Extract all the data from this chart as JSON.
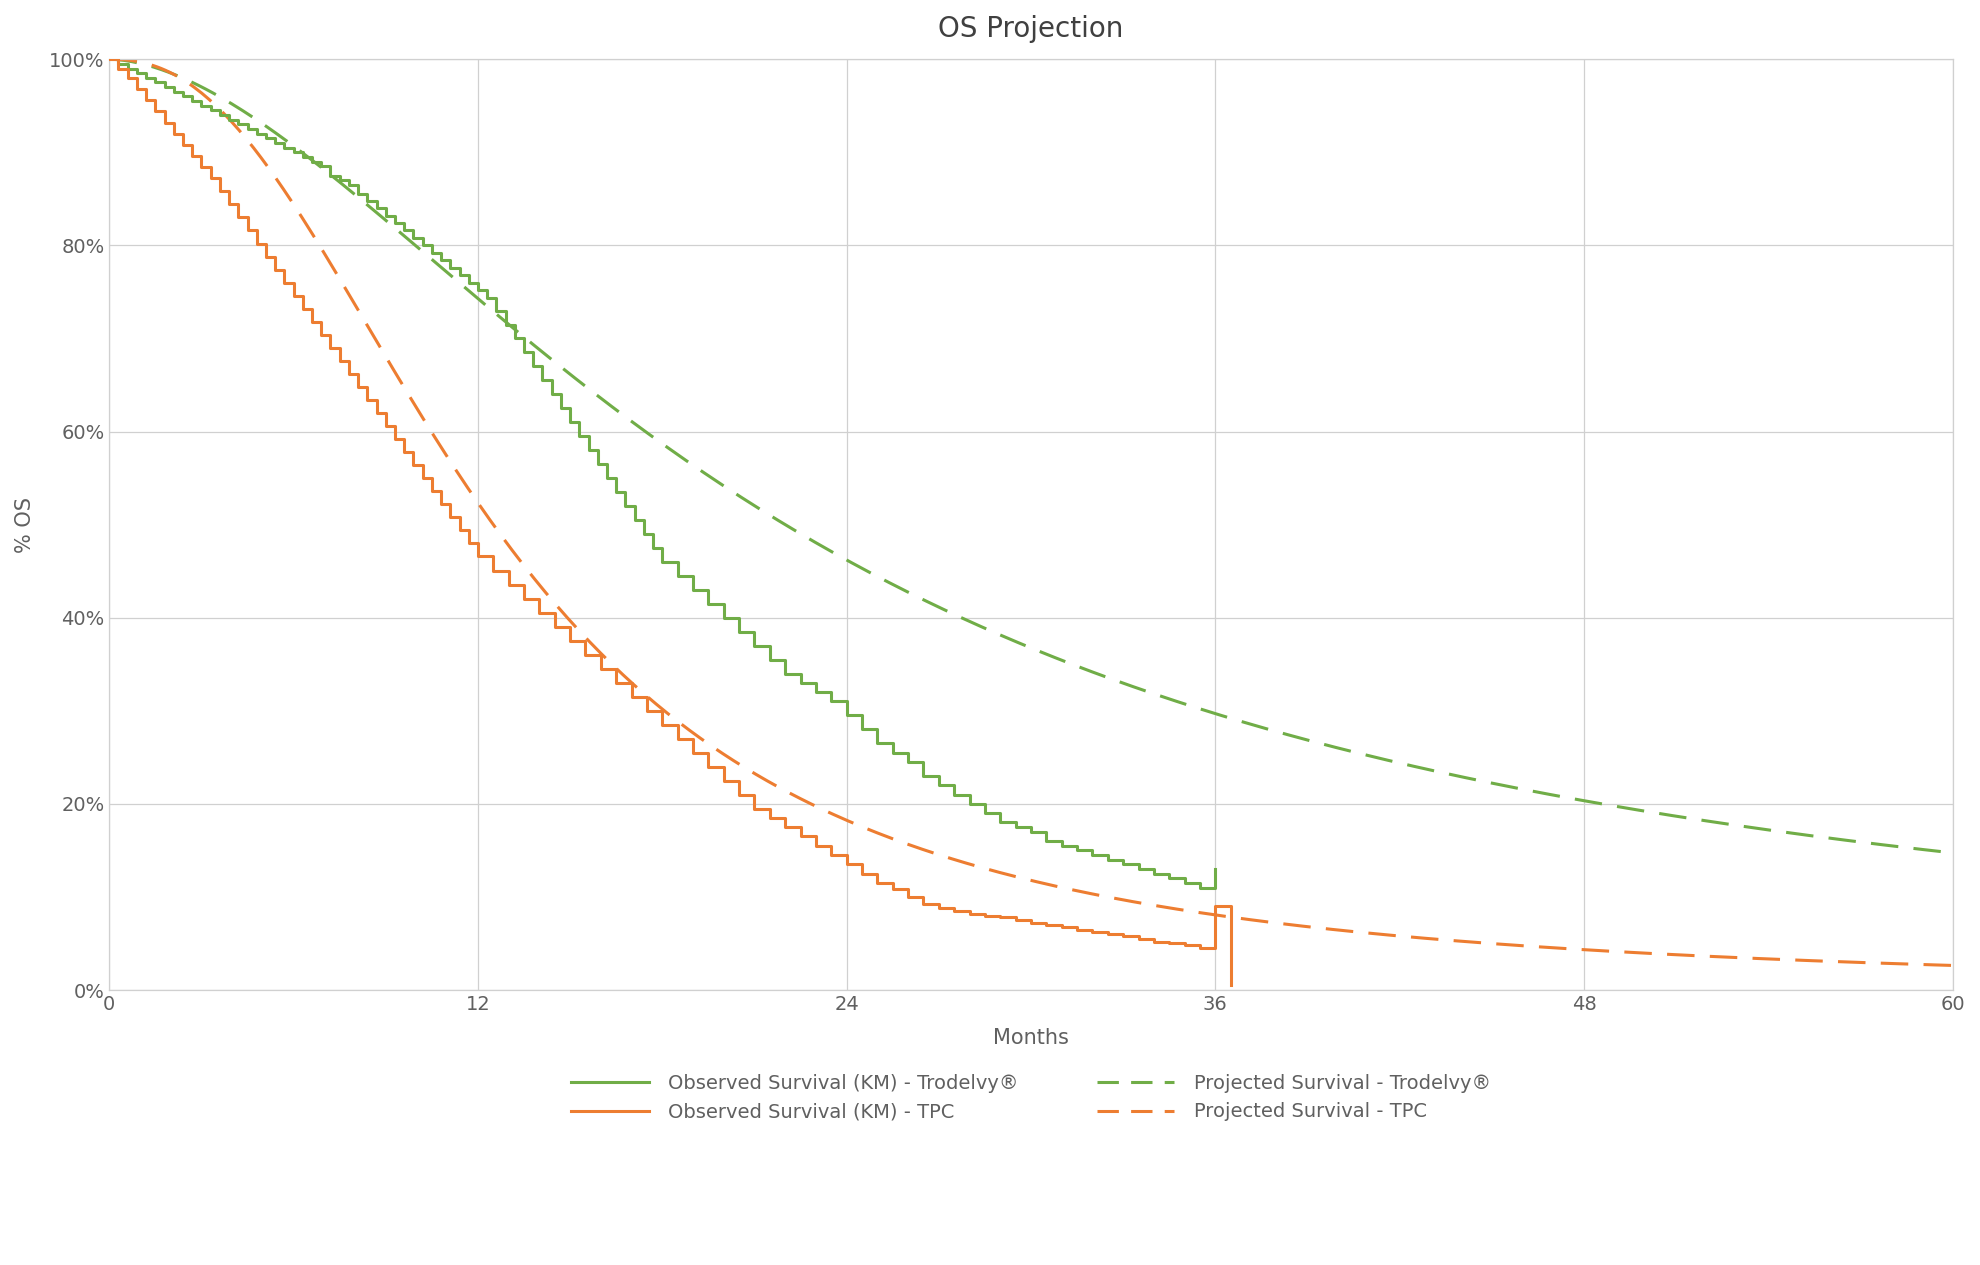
{
  "title": "OS Projection",
  "xlabel": "Months",
  "ylabel": "% OS",
  "xlim": [
    0,
    60
  ],
  "ylim": [
    0,
    1.0
  ],
  "xticks": [
    0,
    12,
    24,
    36,
    48,
    60
  ],
  "yticks": [
    0,
    0.2,
    0.4,
    0.6,
    0.8,
    1.0
  ],
  "ytick_labels": [
    "0%",
    "20%",
    "40%",
    "60%",
    "80%",
    "100%"
  ],
  "green_color": "#70AD47",
  "orange_color": "#ED7D31",
  "background_color": "#FFFFFF",
  "grid_color": "#D0D0D0",
  "legend_entries": [
    {
      "label": "Observed Survival (KM) - Trodelvy®",
      "color": "#70AD47",
      "linestyle": "solid"
    },
    {
      "label": "Observed Survival (KM) - TPC",
      "color": "#ED7D31",
      "linestyle": "solid"
    },
    {
      "label": "Projected Survival - Trodelvy®",
      "color": "#70AD47",
      "linestyle": "dashed"
    },
    {
      "label": "Projected Survival - TPC",
      "color": "#ED7D31",
      "linestyle": "dashed"
    }
  ],
  "title_fontsize": 20,
  "label_fontsize": 15,
  "tick_fontsize": 14,
  "legend_fontsize": 14,
  "linewidth": 2.2,
  "km_trodelvy_x": [
    0,
    0.3,
    0.6,
    0.9,
    1.2,
    1.5,
    1.8,
    2.1,
    2.4,
    2.7,
    3.0,
    3.3,
    3.6,
    3.9,
    4.2,
    4.5,
    4.8,
    5.1,
    5.4,
    5.7,
    6.0,
    6.3,
    6.6,
    6.9,
    7.2,
    7.5,
    7.8,
    8.1,
    8.4,
    8.7,
    9.0,
    9.3,
    9.6,
    9.9,
    10.2,
    10.5,
    10.8,
    11.1,
    11.4,
    11.7,
    12.0,
    12.3,
    12.6,
    12.9,
    13.2,
    13.5,
    13.8,
    14.1,
    14.4,
    14.7,
    15.0,
    15.3,
    15.6,
    15.9,
    16.2,
    16.5,
    16.8,
    17.1,
    17.4,
    17.7,
    18.0,
    18.5,
    19.0,
    19.5,
    20.0,
    20.5,
    21.0,
    21.5,
    22.0,
    22.5,
    23.0,
    23.5,
    24.0,
    24.5,
    25.0,
    25.5,
    26.0,
    26.5,
    27.0,
    27.5,
    28.0,
    28.5,
    29.0,
    29.5,
    30.0,
    30.5,
    31.0,
    31.5,
    32.0,
    32.5,
    33.0,
    33.5,
    34.0,
    34.5,
    35.0,
    35.5,
    36.0
  ],
  "km_trodelvy_y": [
    1.0,
    0.995,
    0.99,
    0.985,
    0.98,
    0.975,
    0.97,
    0.965,
    0.96,
    0.955,
    0.95,
    0.945,
    0.94,
    0.935,
    0.93,
    0.925,
    0.92,
    0.915,
    0.91,
    0.905,
    0.9,
    0.895,
    0.89,
    0.885,
    0.875,
    0.87,
    0.865,
    0.855,
    0.848,
    0.84,
    0.832,
    0.824,
    0.816,
    0.808,
    0.8,
    0.792,
    0.784,
    0.776,
    0.768,
    0.76,
    0.752,
    0.744,
    0.73,
    0.715,
    0.7,
    0.685,
    0.67,
    0.655,
    0.64,
    0.625,
    0.61,
    0.595,
    0.58,
    0.565,
    0.55,
    0.535,
    0.52,
    0.505,
    0.49,
    0.475,
    0.46,
    0.445,
    0.43,
    0.415,
    0.4,
    0.385,
    0.37,
    0.355,
    0.34,
    0.33,
    0.32,
    0.31,
    0.295,
    0.28,
    0.265,
    0.255,
    0.245,
    0.23,
    0.22,
    0.21,
    0.2,
    0.19,
    0.18,
    0.175,
    0.17,
    0.16,
    0.155,
    0.15,
    0.145,
    0.14,
    0.135,
    0.13,
    0.125,
    0.12,
    0.115,
    0.11,
    0.13
  ],
  "km_tpc_x": [
    0,
    0.3,
    0.6,
    0.9,
    1.2,
    1.5,
    1.8,
    2.1,
    2.4,
    2.7,
    3.0,
    3.3,
    3.6,
    3.9,
    4.2,
    4.5,
    4.8,
    5.1,
    5.4,
    5.7,
    6.0,
    6.3,
    6.6,
    6.9,
    7.2,
    7.5,
    7.8,
    8.1,
    8.4,
    8.7,
    9.0,
    9.3,
    9.6,
    9.9,
    10.2,
    10.5,
    10.8,
    11.1,
    11.4,
    11.7,
    12.0,
    12.5,
    13.0,
    13.5,
    14.0,
    14.5,
    15.0,
    15.5,
    16.0,
    16.5,
    17.0,
    17.5,
    18.0,
    18.5,
    19.0,
    19.5,
    20.0,
    20.5,
    21.0,
    21.5,
    22.0,
    22.5,
    23.0,
    23.5,
    24.0,
    24.5,
    25.0,
    25.5,
    26.0,
    26.5,
    27.0,
    27.5,
    28.0,
    28.5,
    29.0,
    29.5,
    30.0,
    30.5,
    31.0,
    31.5,
    32.0,
    32.5,
    33.0,
    33.5,
    34.0,
    34.5,
    35.0,
    35.5,
    36.0,
    36.5
  ],
  "km_tpc_y": [
    1.0,
    0.99,
    0.98,
    0.968,
    0.956,
    0.944,
    0.932,
    0.92,
    0.908,
    0.896,
    0.884,
    0.872,
    0.858,
    0.844,
    0.83,
    0.816,
    0.802,
    0.788,
    0.774,
    0.76,
    0.746,
    0.732,
    0.718,
    0.704,
    0.69,
    0.676,
    0.662,
    0.648,
    0.634,
    0.62,
    0.606,
    0.592,
    0.578,
    0.564,
    0.55,
    0.536,
    0.522,
    0.508,
    0.494,
    0.48,
    0.466,
    0.45,
    0.435,
    0.42,
    0.405,
    0.39,
    0.375,
    0.36,
    0.345,
    0.33,
    0.315,
    0.3,
    0.285,
    0.27,
    0.255,
    0.24,
    0.225,
    0.21,
    0.195,
    0.185,
    0.175,
    0.165,
    0.155,
    0.145,
    0.135,
    0.125,
    0.115,
    0.108,
    0.1,
    0.092,
    0.088,
    0.085,
    0.082,
    0.08,
    0.078,
    0.075,
    0.072,
    0.07,
    0.068,
    0.065,
    0.062,
    0.06,
    0.058,
    0.055,
    0.052,
    0.05,
    0.048,
    0.045,
    0.09,
    0.005
  ],
  "ll_alpha_trod": 22.0,
  "ll_beta_trod": 1.75,
  "ll_alpha_tpc": 12.5,
  "ll_beta_tpc": 2.3
}
